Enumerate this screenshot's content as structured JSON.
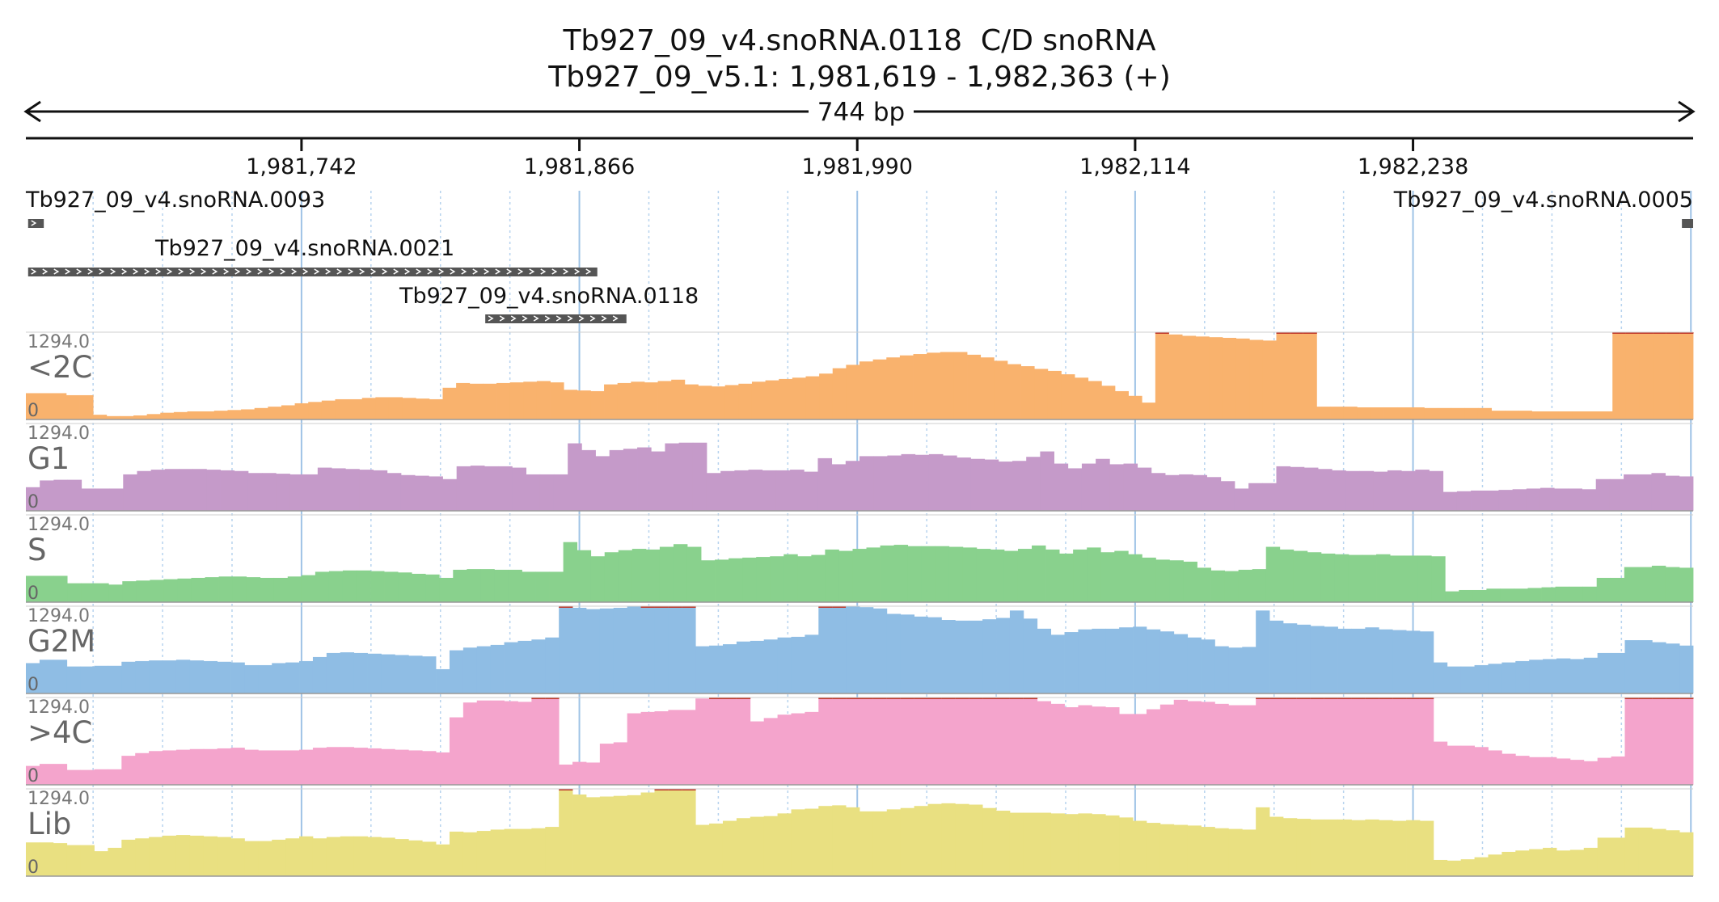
{
  "header": {
    "title_line1": "Tb927_09_v4.snoRNA.0118  C/D snoRNA",
    "title_line2": "Tb927_09_v5.1: 1,981,619 - 1,982,363 (+)",
    "span_label": "744 bp"
  },
  "ruler": {
    "start": 1981619,
    "end": 1982363,
    "ticks": [
      "1,981,742",
      "1,981,866",
      "1,981,990",
      "1,982,114",
      "1,982,238"
    ]
  },
  "features": [
    {
      "name": "Tb927_09_v4.snoRNA.0093",
      "start": 1981620,
      "end": 1981627,
      "strand": "+"
    },
    {
      "name": "Tb927_09_v4.snoRNA.0005",
      "start": 1982358,
      "end": 1982363,
      "strand": "+"
    },
    {
      "name": "Tb927_09_v4.snoRNA.0021",
      "start": 1981620,
      "end": 1981874,
      "strand": "+"
    },
    {
      "name": "Tb927_09_v4.snoRNA.0118",
      "start": 1981824,
      "end": 1981887,
      "strand": "+"
    }
  ],
  "tracks": [
    {
      "name": "<2C",
      "max_label": "1294.0",
      "min_label": "0",
      "color": "#f9b26d",
      "values": [
        390,
        390,
        390,
        360,
        360,
        70,
        50,
        50,
        60,
        80,
        100,
        110,
        120,
        120,
        130,
        140,
        150,
        170,
        190,
        210,
        240,
        260,
        280,
        300,
        300,
        320,
        330,
        330,
        320,
        310,
        300,
        470,
        540,
        530,
        530,
        540,
        550,
        560,
        570,
        550,
        440,
        430,
        420,
        520,
        540,
        560,
        550,
        570,
        590,
        520,
        500,
        490,
        510,
        530,
        560,
        580,
        600,
        620,
        640,
        680,
        760,
        810,
        860,
        890,
        920,
        950,
        970,
        990,
        1000,
        1000,
        960,
        920,
        870,
        820,
        790,
        750,
        720,
        670,
        620,
        570,
        500,
        420,
        350,
        250,
        1294,
        1260,
        1240,
        1230,
        1220,
        1210,
        1200,
        1180,
        1170,
        1294,
        1294,
        1294,
        190,
        190,
        190,
        180,
        180,
        180,
        180,
        180,
        170,
        170,
        170,
        170,
        170,
        130,
        130,
        130,
        120,
        120,
        120,
        120,
        120,
        120,
        1294,
        1294,
        1294,
        1294,
        1294,
        1294
      ]
    },
    {
      "name": "G1",
      "max_label": "1294.0",
      "min_label": "0",
      "color": "#c59ac9",
      "values": [
        350,
        450,
        460,
        460,
        330,
        330,
        330,
        540,
        590,
        610,
        620,
        620,
        620,
        610,
        600,
        590,
        560,
        560,
        550,
        540,
        540,
        640,
        630,
        620,
        610,
        600,
        560,
        530,
        520,
        510,
        470,
        660,
        670,
        660,
        660,
        640,
        540,
        540,
        540,
        1000,
        900,
        810,
        900,
        920,
        940,
        880,
        1000,
        1010,
        1010,
        560,
        590,
        600,
        610,
        600,
        600,
        610,
        580,
        780,
        690,
        740,
        810,
        810,
        820,
        840,
        830,
        840,
        820,
        790,
        770,
        760,
        730,
        740,
        800,
        880,
        700,
        630,
        700,
        770,
        690,
        700,
        640,
        560,
        530,
        540,
        530,
        500,
        440,
        330,
        410,
        410,
        660,
        650,
        640,
        620,
        600,
        590,
        590,
        580,
        600,
        590,
        610,
        590,
        280,
        290,
        300,
        300,
        310,
        320,
        330,
        340,
        330,
        330,
        320,
        470,
        470,
        540,
        540,
        560,
        520,
        510
      ]
    },
    {
      "name": "S",
      "max_label": "1294.0",
      "min_label": "0",
      "color": "#89d18d",
      "values": [
        390,
        390,
        390,
        280,
        280,
        280,
        260,
        310,
        320,
        330,
        340,
        350,
        360,
        370,
        380,
        380,
        370,
        360,
        360,
        380,
        400,
        450,
        460,
        470,
        470,
        460,
        450,
        440,
        420,
        410,
        360,
        480,
        490,
        490,
        480,
        480,
        450,
        450,
        450,
        890,
        770,
        680,
        740,
        770,
        790,
        780,
        820,
        860,
        820,
        620,
        630,
        650,
        660,
        670,
        680,
        710,
        680,
        700,
        780,
        760,
        790,
        810,
        840,
        850,
        830,
        830,
        830,
        820,
        810,
        790,
        780,
        760,
        790,
        840,
        780,
        720,
        780,
        810,
        740,
        760,
        710,
        660,
        630,
        620,
        600,
        510,
        470,
        460,
        480,
        490,
        820,
        780,
        760,
        740,
        720,
        710,
        700,
        700,
        710,
        690,
        690,
        690,
        680,
        160,
        180,
        180,
        200,
        200,
        200,
        210,
        220,
        230,
        230,
        230,
        360,
        360,
        520,
        520,
        540,
        520,
        510
      ]
    },
    {
      "name": "G2M",
      "max_label": "1294.0",
      "min_label": "0",
      "color": "#8fbde4",
      "values": [
        450,
        500,
        500,
        400,
        400,
        410,
        410,
        470,
        480,
        490,
        490,
        500,
        490,
        480,
        470,
        460,
        420,
        420,
        450,
        460,
        480,
        540,
        600,
        610,
        600,
        590,
        580,
        570,
        560,
        550,
        360,
        640,
        680,
        700,
        720,
        760,
        780,
        800,
        830,
        1294,
        1270,
        1250,
        1260,
        1270,
        1290,
        1294,
        1294,
        1294,
        1294,
        700,
        710,
        730,
        770,
        780,
        800,
        830,
        840,
        870,
        1294,
        1294,
        1290,
        1280,
        1260,
        1180,
        1170,
        1140,
        1130,
        1090,
        1080,
        1080,
        1100,
        1120,
        1230,
        1110,
        960,
        870,
        910,
        950,
        960,
        960,
        980,
        990,
        950,
        920,
        880,
        830,
        800,
        700,
        680,
        690,
        1230,
        1080,
        1040,
        1020,
        1000,
        990,
        960,
        960,
        980,
        950,
        940,
        930,
        920,
        460,
        400,
        400,
        420,
        440,
        460,
        480,
        500,
        510,
        520,
        510,
        530,
        600,
        600,
        790,
        790,
        760,
        740,
        710
      ]
    },
    {
      "name": ">4C",
      "max_label": "1294.0",
      "min_label": "0",
      "color": "#f4a4cc",
      "values": [
        280,
        310,
        310,
        220,
        220,
        230,
        230,
        430,
        470,
        500,
        510,
        520,
        530,
        530,
        540,
        550,
        520,
        510,
        510,
        510,
        520,
        550,
        560,
        560,
        550,
        540,
        530,
        520,
        510,
        500,
        480,
        1000,
        1220,
        1250,
        1250,
        1240,
        1230,
        1294,
        1294,
        300,
        340,
        330,
        610,
        630,
        1060,
        1080,
        1090,
        1110,
        1110,
        1280,
        1294,
        1294,
        1294,
        940,
        990,
        1040,
        1060,
        1080,
        1294,
        1294,
        1294,
        1294,
        1294,
        1294,
        1294,
        1294,
        1294,
        1294,
        1294,
        1294,
        1294,
        1294,
        1294,
        1294,
        1240,
        1200,
        1150,
        1180,
        1160,
        1150,
        1050,
        1050,
        1120,
        1190,
        1260,
        1240,
        1230,
        1200,
        1180,
        1180,
        1294,
        1294,
        1294,
        1294,
        1294,
        1294,
        1294,
        1294,
        1294,
        1294,
        1294,
        1294,
        1294,
        640,
        580,
        580,
        560,
        510,
        460,
        430,
        410,
        410,
        390,
        370,
        350,
        400,
        420,
        1294,
        1294,
        1294,
        1294,
        1294
      ]
    },
    {
      "name": "Lib",
      "max_label": "1294.0",
      "min_label": "0",
      "color": "#e9e081",
      "values": [
        500,
        500,
        490,
        460,
        460,
        370,
        420,
        540,
        560,
        580,
        600,
        610,
        600,
        590,
        580,
        560,
        520,
        520,
        540,
        560,
        590,
        560,
        580,
        590,
        590,
        580,
        570,
        550,
        530,
        510,
        470,
        660,
        650,
        670,
        690,
        700,
        700,
        710,
        730,
        1294,
        1210,
        1170,
        1180,
        1190,
        1200,
        1240,
        1294,
        1294,
        1294,
        760,
        780,
        820,
        860,
        880,
        890,
        930,
        990,
        1000,
        1040,
        1050,
        1020,
        960,
        960,
        990,
        1010,
        1040,
        1070,
        1080,
        1070,
        1060,
        1010,
        970,
        940,
        940,
        940,
        930,
        920,
        930,
        920,
        900,
        870,
        820,
        790,
        770,
        760,
        750,
        730,
        710,
        700,
        690,
        1020,
        880,
        860,
        850,
        840,
        840,
        840,
        830,
        840,
        830,
        820,
        830,
        820,
        240,
        230,
        250,
        280,
        320,
        360,
        380,
        400,
        420,
        380,
        390,
        420,
        570,
        570,
        720,
        720,
        700,
        680,
        650
      ]
    }
  ]
}
